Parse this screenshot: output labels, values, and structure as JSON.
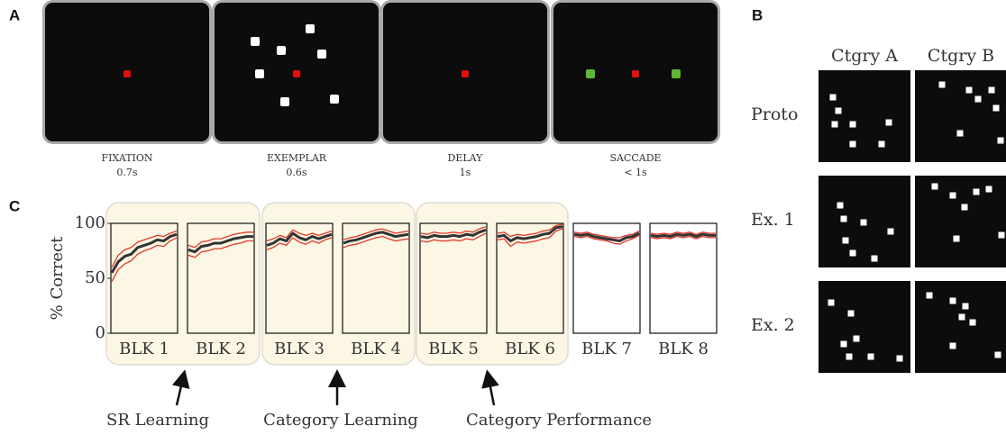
{
  "panel_a": {
    "label": "A",
    "screens": [
      {
        "name": "FIXATION",
        "duration": "0.7s"
      },
      {
        "name": "EXEMPLAR",
        "duration": "0.6s"
      },
      {
        "name": "DELAY",
        "duration": "1s"
      },
      {
        "name": "SACCADE",
        "duration": "< 1s"
      }
    ]
  },
  "panel_b": {
    "label": "B",
    "columns": [
      "Ctgry A",
      "Ctgry B"
    ],
    "rows": [
      "Proto",
      "Ex. 1",
      "Ex. 2"
    ]
  },
  "panel_c_label": "C",
  "chart_data": {
    "type": "line",
    "ylabel": "% Correct",
    "ylim": [
      0,
      100
    ],
    "yticks": [
      0,
      50,
      100
    ],
    "mean_color": "#333333",
    "bound_color": "#e0392b",
    "blocks": [
      {
        "label": "BLK 1",
        "mean": [
          55,
          65,
          70,
          72,
          78,
          80,
          82,
          85,
          84,
          88,
          90
        ],
        "upper": [
          60,
          71,
          76,
          78,
          83,
          85,
          87,
          89,
          88,
          91,
          93
        ],
        "lower": [
          47,
          58,
          63,
          66,
          72,
          75,
          77,
          80,
          79,
          84,
          87
        ]
      },
      {
        "label": "BLK 2",
        "mean": [
          76,
          74,
          79,
          80,
          82,
          82,
          84,
          86,
          87,
          88,
          88
        ],
        "upper": [
          80,
          78,
          83,
          84,
          86,
          86,
          88,
          90,
          91,
          92,
          92
        ],
        "lower": [
          71,
          69,
          74,
          75,
          77,
          77,
          79,
          81,
          82,
          84,
          84
        ]
      },
      {
        "label": "BLK 3",
        "mean": [
          80,
          82,
          86,
          84,
          91,
          87,
          85,
          88,
          86,
          88,
          90
        ],
        "upper": [
          84,
          86,
          89,
          87,
          94,
          91,
          89,
          91,
          89,
          91,
          93
        ],
        "lower": [
          76,
          78,
          82,
          80,
          87,
          83,
          81,
          84,
          82,
          85,
          87
        ]
      },
      {
        "label": "BLK 4",
        "mean": [
          82,
          84,
          85,
          87,
          89,
          91,
          92,
          90,
          88,
          89,
          90
        ],
        "upper": [
          85,
          87,
          88,
          90,
          92,
          94,
          95,
          93,
          91,
          92,
          93
        ],
        "lower": [
          78,
          80,
          81,
          83,
          85,
          87,
          88,
          86,
          84,
          85,
          86
        ]
      },
      {
        "label": "BLK 5",
        "mean": [
          88,
          87,
          89,
          88,
          88,
          89,
          88,
          90,
          89,
          92,
          94
        ],
        "upper": [
          91,
          90,
          92,
          91,
          91,
          92,
          91,
          93,
          92,
          95,
          97
        ],
        "lower": [
          84,
          83,
          85,
          84,
          84,
          85,
          84,
          86,
          85,
          88,
          91
        ]
      },
      {
        "label": "BLK 6",
        "mean": [
          88,
          89,
          84,
          87,
          86,
          87,
          88,
          90,
          91,
          96,
          97
        ],
        "upper": [
          91,
          92,
          88,
          90,
          89,
          90,
          91,
          93,
          94,
          98,
          99
        ],
        "lower": [
          85,
          86,
          79,
          83,
          82,
          83,
          84,
          86,
          87,
          93,
          95
        ]
      },
      {
        "label": "BLK 7",
        "mean": [
          90,
          89,
          90,
          88,
          87,
          86,
          85,
          84,
          87,
          88,
          91
        ],
        "upper": [
          92,
          91,
          92,
          90,
          89,
          88,
          87,
          87,
          89,
          90,
          93
        ],
        "lower": [
          88,
          87,
          88,
          86,
          85,
          84,
          82,
          81,
          84,
          86,
          89
        ]
      },
      {
        "label": "BLK 8",
        "mean": [
          89,
          88,
          89,
          88,
          90,
          89,
          90,
          88,
          90,
          89,
          89
        ],
        "upper": [
          91,
          90,
          91,
          90,
          92,
          91,
          92,
          90,
          92,
          91,
          91
        ],
        "lower": [
          87,
          86,
          87,
          86,
          88,
          87,
          88,
          86,
          88,
          87,
          87
        ]
      }
    ],
    "groups": [
      {
        "label": "SR Learning"
      },
      {
        "label": "Category Learning"
      },
      {
        "label": "Category Performance"
      }
    ]
  }
}
